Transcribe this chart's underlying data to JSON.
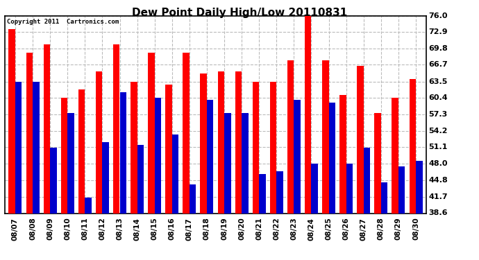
{
  "title": "Dew Point Daily High/Low 20110831",
  "copyright": "Copyright 2011  Cartronics.com",
  "dates": [
    "08/07",
    "08/08",
    "08/09",
    "08/10",
    "08/11",
    "08/12",
    "08/13",
    "08/14",
    "08/15",
    "08/16",
    "08/17",
    "08/18",
    "08/19",
    "08/20",
    "08/21",
    "08/22",
    "08/23",
    "08/24",
    "08/25",
    "08/26",
    "08/27",
    "08/28",
    "08/29",
    "08/30"
  ],
  "highs": [
    73.5,
    69.0,
    70.5,
    60.5,
    62.0,
    65.5,
    70.5,
    63.5,
    69.0,
    63.0,
    69.0,
    65.0,
    65.5,
    65.5,
    63.5,
    63.5,
    67.5,
    76.5,
    67.5,
    61.0,
    66.5,
    57.5,
    60.5,
    64.0
  ],
  "lows": [
    63.5,
    63.5,
    51.0,
    57.5,
    41.5,
    52.0,
    61.5,
    51.5,
    60.5,
    53.5,
    44.0,
    60.0,
    57.5,
    57.5,
    46.0,
    46.5,
    60.0,
    48.0,
    59.5,
    48.0,
    51.0,
    44.5,
    47.5,
    48.5
  ],
  "bar_color_high": "#ff0000",
  "bar_color_low": "#0000cc",
  "bg_color": "#ffffff",
  "plot_bg_color": "#ffffff",
  "grid_color": "#bbbbbb",
  "title_fontsize": 11,
  "ymin": 38.6,
  "ymax": 76.0,
  "yticks": [
    38.6,
    41.7,
    44.8,
    48.0,
    51.1,
    54.2,
    57.3,
    60.4,
    63.5,
    66.7,
    69.8,
    72.9,
    76.0
  ],
  "bar_width": 0.38,
  "figsize": [
    6.9,
    3.75
  ],
  "dpi": 100
}
